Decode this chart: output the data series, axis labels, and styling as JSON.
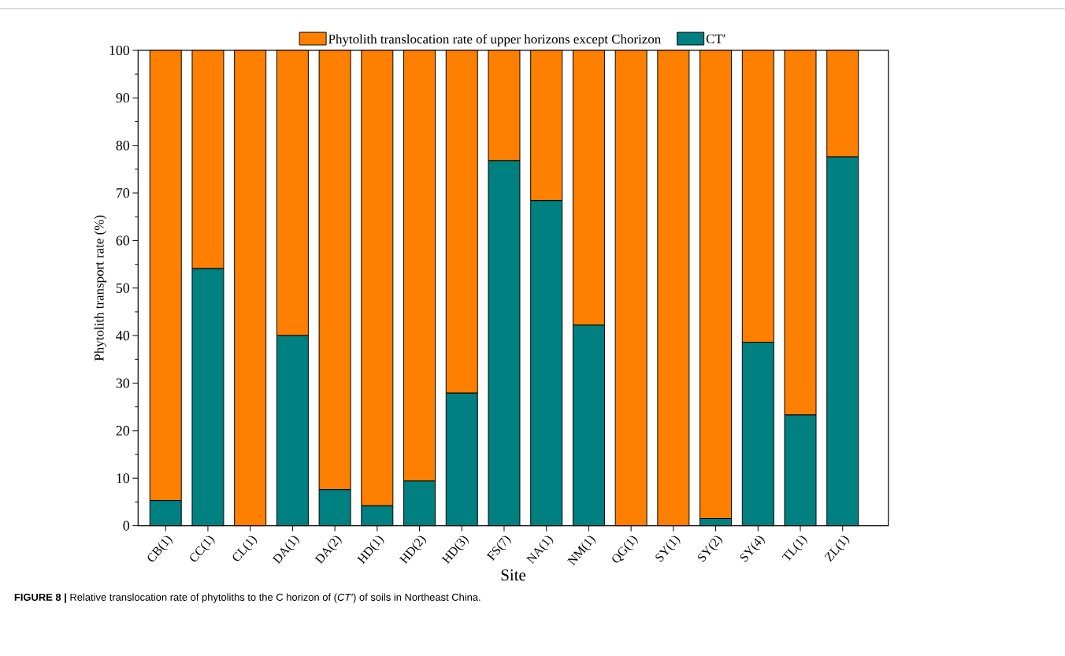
{
  "chart_data": {
    "type": "bar",
    "stacked": true,
    "xlabel": "Site",
    "ylabel": "Phytolith transport rate (%)",
    "categories": [
      "CB(1)",
      "CC(1)",
      "CL(1)",
      "DA(1)",
      "DA(2)",
      "HD(1)",
      "HD(2)",
      "HD(3)",
      "FS(7)",
      "NA(1)",
      "NM(1)",
      "QG(1)",
      "SY(1)",
      "SY(2)",
      "SY(4)",
      "TL(1)",
      "ZL(1)"
    ],
    "series": [
      {
        "name": "CT′",
        "color": "#008080",
        "values": [
          5.3,
          54.1,
          0,
          40.0,
          7.6,
          4.2,
          9.4,
          27.9,
          76.8,
          68.4,
          42.2,
          0,
          0,
          1.5,
          38.6,
          23.3,
          77.6
        ]
      },
      {
        "name": "Phytolith translocation rate of upper horizons except Chorizon",
        "color": "#ff8000",
        "values": [
          94.7,
          45.9,
          100,
          60.0,
          92.4,
          95.8,
          90.6,
          72.1,
          23.2,
          31.6,
          57.8,
          100,
          100,
          98.5,
          61.4,
          76.7,
          22.4
        ]
      }
    ],
    "ylim": [
      0,
      100
    ],
    "yticks": [
      0,
      10,
      20,
      30,
      40,
      50,
      60,
      70,
      80,
      90,
      100
    ],
    "grid": false,
    "legend": "top",
    "annotations": [
      "**FIGURE 8 |** Relative translocation rate of phytoliths to the C horizon of (*CT′*) of soils in Northeast China."
    ]
  }
}
